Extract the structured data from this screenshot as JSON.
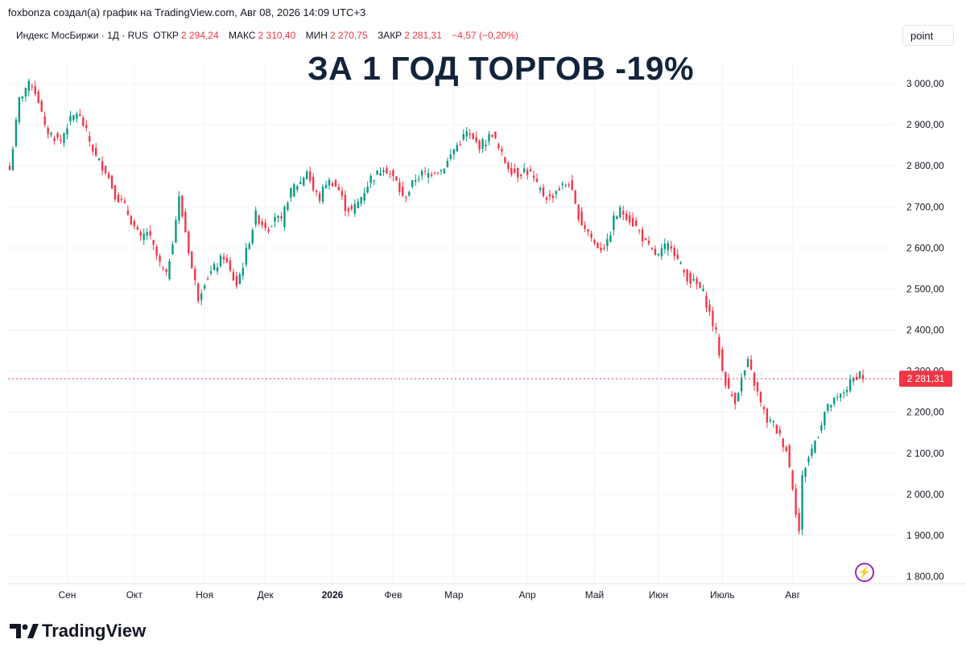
{
  "header": {
    "attribution": "foxbonza создал(а) график на TradingView.com, Авг 08, 2026 14:09 UTC+3"
  },
  "legend": {
    "symbol": "Индекс МосБиржи · 1Д · RUS",
    "open_label": "ОТКР",
    "open_value": "2 294,24",
    "high_label": "МАКС",
    "high_value": "2 310,40",
    "low_label": "МИН",
    "low_value": "2 270,75",
    "close_label": "ЗАКР",
    "close_value": "2 281,31",
    "change_value": "−4,57 (−0,20%)"
  },
  "unit_button": "point",
  "headline": "ЗА 1 ГОД ТОРГОВ -19%",
  "brand": "TradingView",
  "colors": {
    "up": "#089981",
    "down": "#f23645",
    "grid": "#f0f3fa",
    "text": "#131722",
    "headline": "#13243a"
  },
  "chart_data": {
    "type": "candlestick",
    "title": "ЗА 1 ГОД ТОРГОВ -19%",
    "ylim": [
      1780,
      3040
    ],
    "yticks": [
      1800,
      1900,
      2000,
      2100,
      2200,
      2300,
      2400,
      2500,
      2600,
      2700,
      2800,
      2900,
      3000
    ],
    "ytick_labels": [
      "1 800,00",
      "1 900,00",
      "2 000,00",
      "2 100,00",
      "2 200,00",
      "2 300,00",
      "2 400,00",
      "2 500,00",
      "2 600,00",
      "2 700,00",
      "2 800,00",
      "2 900,00",
      "3 000,00"
    ],
    "x_months": [
      {
        "label": "Сен",
        "index": 18,
        "bold": false
      },
      {
        "label": "Окт",
        "index": 39,
        "bold": false
      },
      {
        "label": "Ноя",
        "index": 61,
        "bold": false
      },
      {
        "label": "Дек",
        "index": 80,
        "bold": false
      },
      {
        "label": "2026",
        "index": 101,
        "bold": true
      },
      {
        "label": "Фев",
        "index": 120,
        "bold": false
      },
      {
        "label": "Мар",
        "index": 139,
        "bold": false
      },
      {
        "label": "Апр",
        "index": 162,
        "bold": false
      },
      {
        "label": "Май",
        "index": 183,
        "bold": false
      },
      {
        "label": "Июн",
        "index": 203,
        "bold": false
      },
      {
        "label": "Июль",
        "index": 223,
        "bold": false
      },
      {
        "label": "Авг",
        "index": 245,
        "bold": false
      }
    ],
    "last_price": 2281.31,
    "last_price_label": "2 281,31",
    "anchors": [
      [
        0,
        2790
      ],
      [
        3,
        2960
      ],
      [
        5,
        2990
      ],
      [
        7,
        3000
      ],
      [
        9,
        2960
      ],
      [
        11,
        2890
      ],
      [
        14,
        2870
      ],
      [
        16,
        2860
      ],
      [
        18,
        2900
      ],
      [
        21,
        2930
      ],
      [
        23,
        2900
      ],
      [
        25,
        2860
      ],
      [
        27,
        2820
      ],
      [
        30,
        2790
      ],
      [
        33,
        2730
      ],
      [
        36,
        2700
      ],
      [
        39,
        2650
      ],
      [
        41,
        2620
      ],
      [
        43,
        2640
      ],
      [
        45,
        2600
      ],
      [
        47,
        2560
      ],
      [
        49,
        2530
      ],
      [
        51,
        2620
      ],
      [
        53,
        2720
      ],
      [
        55,
        2640
      ],
      [
        57,
        2550
      ],
      [
        59,
        2480
      ],
      [
        61,
        2520
      ],
      [
        63,
        2540
      ],
      [
        65,
        2560
      ],
      [
        67,
        2580
      ],
      [
        69,
        2540
      ],
      [
        71,
        2510
      ],
      [
        73,
        2560
      ],
      [
        75,
        2620
      ],
      [
        77,
        2680
      ],
      [
        79,
        2660
      ],
      [
        81,
        2650
      ],
      [
        83,
        2680
      ],
      [
        85,
        2660
      ],
      [
        87,
        2720
      ],
      [
        89,
        2750
      ],
      [
        91,
        2760
      ],
      [
        93,
        2790
      ],
      [
        95,
        2740
      ],
      [
        97,
        2720
      ],
      [
        99,
        2760
      ],
      [
        101,
        2760
      ],
      [
        103,
        2740
      ],
      [
        105,
        2700
      ],
      [
        107,
        2690
      ],
      [
        109,
        2710
      ],
      [
        111,
        2740
      ],
      [
        113,
        2770
      ],
      [
        115,
        2780
      ],
      [
        117,
        2800
      ],
      [
        119,
        2780
      ],
      [
        121,
        2760
      ],
      [
        123,
        2720
      ],
      [
        125,
        2740
      ],
      [
        127,
        2770
      ],
      [
        129,
        2780
      ],
      [
        131,
        2780
      ],
      [
        133,
        2790
      ],
      [
        135,
        2790
      ],
      [
        137,
        2810
      ],
      [
        139,
        2840
      ],
      [
        141,
        2860
      ],
      [
        143,
        2880
      ],
      [
        145,
        2860
      ],
      [
        147,
        2850
      ],
      [
        149,
        2860
      ],
      [
        151,
        2880
      ],
      [
        153,
        2840
      ],
      [
        155,
        2810
      ],
      [
        157,
        2790
      ],
      [
        159,
        2780
      ],
      [
        161,
        2790
      ],
      [
        163,
        2780
      ],
      [
        165,
        2750
      ],
      [
        167,
        2730
      ],
      [
        169,
        2720
      ],
      [
        171,
        2740
      ],
      [
        173,
        2750
      ],
      [
        175,
        2760
      ],
      [
        177,
        2700
      ],
      [
        179,
        2660
      ],
      [
        181,
        2640
      ],
      [
        183,
        2610
      ],
      [
        185,
        2600
      ],
      [
        187,
        2610
      ],
      [
        189,
        2670
      ],
      [
        191,
        2690
      ],
      [
        193,
        2680
      ],
      [
        195,
        2660
      ],
      [
        197,
        2640
      ],
      [
        199,
        2610
      ],
      [
        201,
        2590
      ],
      [
        203,
        2580
      ],
      [
        205,
        2600
      ],
      [
        207,
        2610
      ],
      [
        209,
        2570
      ],
      [
        211,
        2540
      ],
      [
        213,
        2520
      ],
      [
        215,
        2510
      ],
      [
        217,
        2490
      ],
      [
        219,
        2440
      ],
      [
        221,
        2390
      ],
      [
        223,
        2300
      ],
      [
        225,
        2250
      ],
      [
        227,
        2230
      ],
      [
        229,
        2280
      ],
      [
        231,
        2320
      ],
      [
        233,
        2270
      ],
      [
        235,
        2220
      ],
      [
        237,
        2180
      ],
      [
        239,
        2170
      ],
      [
        241,
        2140
      ],
      [
        243,
        2110
      ],
      [
        245,
        2020
      ],
      [
        246,
        1960
      ],
      [
        247,
        1910
      ],
      [
        248,
        2040
      ],
      [
        249,
        2070
      ],
      [
        251,
        2110
      ],
      [
        253,
        2150
      ],
      [
        255,
        2200
      ],
      [
        257,
        2220
      ],
      [
        259,
        2230
      ],
      [
        261,
        2250
      ],
      [
        263,
        2270
      ],
      [
        265,
        2290
      ],
      [
        266,
        2295
      ],
      [
        267,
        2281
      ]
    ]
  }
}
